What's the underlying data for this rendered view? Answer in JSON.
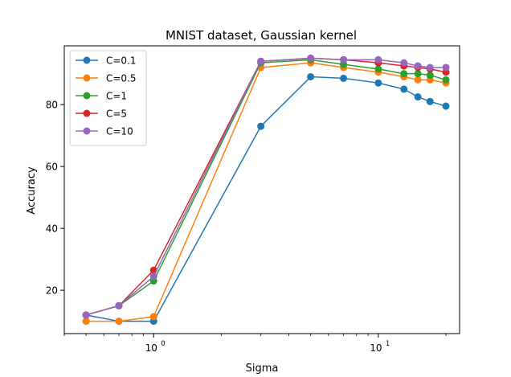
{
  "chart_data": {
    "type": "line",
    "title": "MNIST dataset, Gaussian kernel",
    "xlabel": "Sigma",
    "ylabel": "Accuracy",
    "xscale": "log",
    "xlim": [
      0.4,
      23
    ],
    "ylim": [
      6,
      99
    ],
    "grid": false,
    "legend_position": "top-left",
    "x": [
      0.5,
      0.7,
      1,
      3,
      5,
      7,
      10,
      13,
      15,
      17,
      20
    ],
    "x_tick_labels": [
      {
        "value": 1,
        "base": "10",
        "exp": "0"
      },
      {
        "value": 10,
        "base": "10",
        "exp": "1"
      }
    ],
    "y_ticks": [
      20,
      40,
      60,
      80
    ],
    "series": [
      {
        "name": "C=0.1",
        "color": "#1f77b4",
        "values": [
          12,
          10,
          10,
          73,
          89,
          88.5,
          87,
          85,
          82.5,
          81,
          79.5
        ]
      },
      {
        "name": "C=0.5",
        "color": "#ff7f0e",
        "values": [
          10,
          10,
          11.5,
          92,
          93.5,
          92,
          90.5,
          89,
          88,
          88,
          87
        ]
      },
      {
        "name": "C=1",
        "color": "#2ca02c",
        "values": [
          12,
          15,
          23,
          93.5,
          94.5,
          93,
          91.5,
          90,
          90,
          89.5,
          88
        ]
      },
      {
        "name": "C=5",
        "color": "#d62728",
        "values": [
          12,
          15,
          26.5,
          94,
          95,
          94.5,
          93.5,
          92.5,
          92,
          91.5,
          90.5
        ]
      },
      {
        "name": "C=10",
        "color": "#9467bd",
        "values": [
          12,
          15,
          24.5,
          94,
          95,
          94.5,
          94.5,
          93.5,
          92.5,
          92,
          92
        ]
      }
    ]
  }
}
